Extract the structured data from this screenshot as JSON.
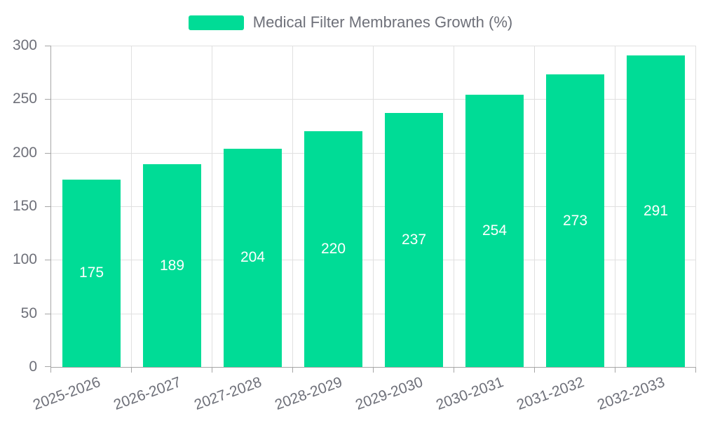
{
  "legend": {
    "label": "Medical Filter Membranes Growth (%)"
  },
  "chart_data": {
    "type": "bar",
    "title": "Medical Filter Membranes Growth (%)",
    "series_name": "Medical Filter Membranes Growth (%)",
    "categories": [
      "2025-2026",
      "2026-2027",
      "2027-2028",
      "2028-2029",
      "2029-2030",
      "2030-2031",
      "2031-2032",
      "2032-2033"
    ],
    "values": [
      175,
      189,
      204,
      220,
      237,
      254,
      273,
      291
    ],
    "bar_labels": [
      "175",
      "189",
      "204",
      "220",
      "237",
      "254",
      "273",
      "291"
    ],
    "xlabel": "",
    "ylabel": "",
    "ylim": [
      0,
      300
    ],
    "yticks": [
      0,
      50,
      100,
      150,
      200,
      250,
      300
    ],
    "grid": true,
    "x_label_rotation_deg": -20,
    "legend_position": "top-center",
    "colors": {
      "bar": "#00DC96",
      "bar_label": "#FFFFFF",
      "axis_line": "#A6A6A6",
      "grid_line": "#E0E0E0",
      "text": "#6E7079",
      "background": "#FFFFFF"
    }
  }
}
